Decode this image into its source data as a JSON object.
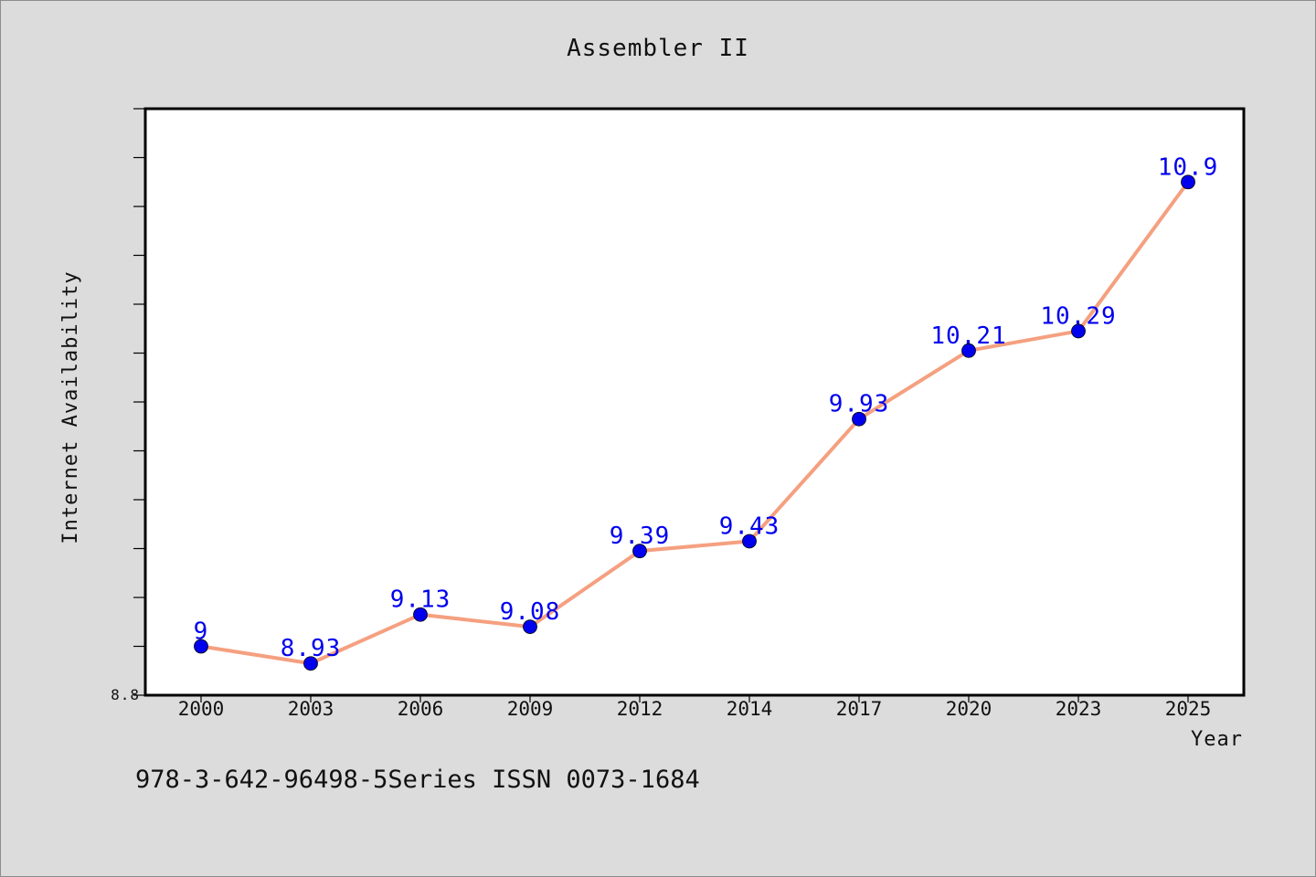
{
  "chart_data": {
    "type": "line",
    "title": "Assembler II",
    "xlabel": "Year",
    "ylabel": "Internet Availability",
    "categories": [
      "2000",
      "2003",
      "2006",
      "2009",
      "2012",
      "2014",
      "2017",
      "2020",
      "2023",
      "2025"
    ],
    "series": [
      {
        "values": [
          9,
          8.93,
          9.13,
          9.08,
          9.39,
          9.43,
          9.93,
          10.21,
          10.29,
          10.9
        ],
        "data_labels": [
          "9",
          "8.93",
          "9.13",
          "9.08",
          "9.39",
          "9.43",
          "9.93",
          "10.21",
          "10.29",
          "10.9"
        ]
      }
    ],
    "ylim": [
      8.8,
      11.2
    ],
    "y_tick_labels": [
      "8.8"
    ],
    "grid": false,
    "legend": "none",
    "line_color": "#f5a080",
    "marker_color": "#0000ee",
    "label_color": "#0000ee",
    "background": "#dcdcdc",
    "plot_background": "#ffffff"
  },
  "footer": {
    "text": "978-3-642-96498-5Series ISSN 0073-1684"
  }
}
